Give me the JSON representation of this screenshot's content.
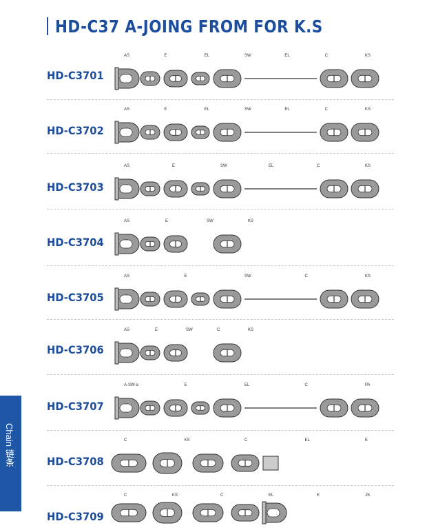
{
  "title": "HD-C37 A-JOING FROM FOR K.S",
  "side_tab": "Chain 链条",
  "rows": [
    {
      "label": "HD-C3701",
      "parts": [
        "AS",
        "E",
        "EL",
        "SW",
        "EL",
        "C",
        "KS"
      ]
    },
    {
      "label": "HD-C3702",
      "parts": [
        "AS",
        "E",
        "EL",
        "SW",
        "EL",
        "C",
        "KS"
      ]
    },
    {
      "label": "HD-C3703",
      "parts": [
        "AS",
        "E",
        "SW",
        "EL",
        "C",
        "KS"
      ]
    },
    {
      "label": "HD-C3704",
      "parts": [
        "AS",
        "E",
        "SW",
        "KS"
      ]
    },
    {
      "label": "HD-C3705",
      "parts": [
        "AS",
        "E",
        "SW",
        "C",
        "KS"
      ]
    },
    {
      "label": "HD-C3706",
      "parts": [
        "AS",
        "E",
        "SW",
        "C",
        "KS"
      ]
    },
    {
      "label": "HD-C3707",
      "parts": [
        "A-SW-a",
        "E",
        "EL",
        "C",
        "PA"
      ]
    },
    {
      "label": "HD-C3708",
      "parts": [
        "C",
        "KS",
        "C",
        "EL",
        "E"
      ]
    },
    {
      "label": "HD-C3709",
      "parts": [
        "C",
        "KS",
        "C",
        "EL",
        "E",
        "JS"
      ]
    }
  ]
}
